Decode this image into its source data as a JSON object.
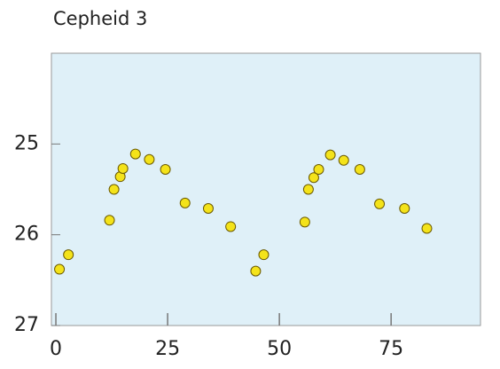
{
  "chart_data": {
    "type": "scatter",
    "title": "Cepheid 3",
    "x": [
      0.8,
      2.8,
      12.0,
      13.0,
      14.4,
      15.0,
      17.8,
      20.9,
      24.5,
      28.9,
      34.1,
      39.1,
      44.7,
      46.5,
      55.7,
      56.5,
      57.7,
      58.8,
      61.4,
      64.4,
      68.0,
      72.4,
      78.0,
      83.0
    ],
    "values": [
      26.38,
      26.22,
      25.84,
      25.5,
      25.36,
      25.27,
      25.11,
      25.17,
      25.28,
      25.65,
      25.71,
      25.91,
      26.4,
      26.22,
      25.86,
      25.5,
      25.37,
      25.28,
      25.12,
      25.18,
      25.28,
      25.66,
      25.71,
      25.93
    ],
    "color": "#f4e31a",
    "xlim": [
      -1,
      95
    ],
    "xticks": [
      0,
      25,
      50,
      75
    ],
    "ylim": [
      27,
      24
    ],
    "yticks": [
      25,
      26,
      27
    ]
  }
}
